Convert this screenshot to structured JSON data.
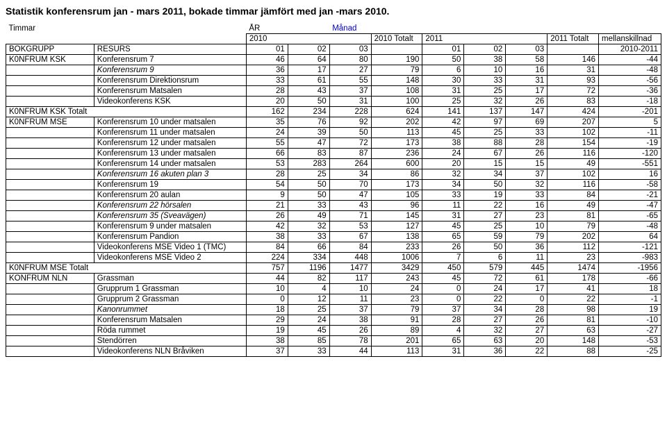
{
  "title": "Statistik konferensrum jan - mars 2011, bokade timmar jämfört med jan -mars 2010.",
  "headers": {
    "timmar": "Timmar",
    "ar": "ÅR",
    "manad": "Månad",
    "y2010": "2010",
    "t2010": "2010 Totalt",
    "y2011": "2011",
    "t2011": "2011 Totalt",
    "diff": "mellanskillnad",
    "bokgrupp": "BOKGRUPP",
    "resurs": "RESURS",
    "m01": "01",
    "m02": "02",
    "m03": "03",
    "span": "2010-2011"
  },
  "groups": [
    {
      "name": "K0NFRUM KSK",
      "rows": [
        {
          "label": "Konferensrum 7",
          "v": [
            46,
            64,
            80,
            190,
            50,
            38,
            58,
            146,
            -44
          ]
        },
        {
          "label": "Konferensrum 9",
          "italic": true,
          "v": [
            36,
            17,
            27,
            79,
            6,
            10,
            16,
            31,
            -48
          ]
        },
        {
          "label": "Konferensrum Direktionsrum",
          "v": [
            33,
            61,
            55,
            148,
            30,
            33,
            31,
            93,
            -56
          ]
        },
        {
          "label": "Konferensrum Matsalen",
          "v": [
            28,
            43,
            37,
            108,
            31,
            25,
            17,
            72,
            -36
          ]
        },
        {
          "label": "Videokonferens KSK",
          "v": [
            20,
            50,
            31,
            100,
            25,
            32,
            26,
            83,
            -18
          ]
        }
      ],
      "total": {
        "label": "K0NFRUM KSK Totalt",
        "v": [
          162,
          234,
          228,
          624,
          141,
          137,
          147,
          424,
          -201
        ]
      }
    },
    {
      "name": "K0NFRUM MSE",
      "rows": [
        {
          "label": "Konferensrum 10 under matsalen",
          "v": [
            35,
            76,
            92,
            202,
            42,
            97,
            69,
            207,
            5
          ]
        },
        {
          "label": "Konferensrum 11 under matsalen",
          "v": [
            24,
            39,
            50,
            113,
            45,
            25,
            33,
            102,
            -11
          ]
        },
        {
          "label": "Konferensrum 12 under matsalen",
          "v": [
            55,
            47,
            72,
            173,
            38,
            88,
            28,
            154,
            -19
          ]
        },
        {
          "label": "Konferensrum 13 under matsalen",
          "v": [
            66,
            83,
            87,
            236,
            24,
            67,
            26,
            116,
            -120
          ]
        },
        {
          "label": "Konferensrum 14 under matsalen",
          "v": [
            53,
            283,
            264,
            600,
            20,
            15,
            15,
            49,
            -551
          ]
        },
        {
          "label": "Konferensrum 16 akuten plan 3",
          "italic": true,
          "v": [
            28,
            25,
            34,
            86,
            32,
            34,
            37,
            102,
            16
          ]
        },
        {
          "label": "Konferensrum 19",
          "v": [
            54,
            50,
            70,
            173,
            34,
            50,
            32,
            116,
            -58
          ]
        },
        {
          "label": "Konferensrum 20 aulan",
          "v": [
            9,
            50,
            47,
            105,
            33,
            19,
            33,
            84,
            -21
          ]
        },
        {
          "label": "Konferensrum 22 hörsalen",
          "italic": true,
          "v": [
            21,
            33,
            43,
            96,
            11,
            22,
            16,
            49,
            -47
          ]
        },
        {
          "label": "Konferensrum 35 (Sveavägen)",
          "italic": true,
          "v": [
            26,
            49,
            71,
            145,
            31,
            27,
            23,
            81,
            -65
          ]
        },
        {
          "label": "Konferensrum 9 under matsalen",
          "v": [
            42,
            32,
            53,
            127,
            45,
            25,
            10,
            79,
            -48
          ]
        },
        {
          "label": "Konferensrum Pandion",
          "v": [
            38,
            33,
            67,
            138,
            65,
            59,
            79,
            202,
            64
          ]
        },
        {
          "label": "Videokonferens MSE Video 1 (TMC)",
          "v": [
            84,
            66,
            84,
            233,
            26,
            50,
            36,
            112,
            -121
          ]
        },
        {
          "label": "Videokonferens MSE Video 2",
          "v": [
            224,
            334,
            448,
            1006,
            7,
            6,
            11,
            23,
            -983
          ]
        }
      ],
      "total": {
        "label": "K0NFRUM MSE Totalt",
        "v": [
          757,
          1196,
          1477,
          3429,
          450,
          579,
          445,
          1474,
          -1956
        ]
      }
    },
    {
      "name": "KONFRUM NLN",
      "rows": [
        {
          "label": "Grassman",
          "v": [
            44,
            82,
            117,
            243,
            45,
            72,
            61,
            178,
            -66
          ]
        },
        {
          "label": "Grupprum 1 Grassman",
          "v": [
            10,
            4,
            10,
            24,
            0,
            24,
            17,
            41,
            18
          ]
        },
        {
          "label": "Grupprum 2 Grassman",
          "v": [
            0,
            12,
            11,
            23,
            0,
            22,
            0,
            22,
            -1
          ]
        },
        {
          "label": "Kanonrummet",
          "italic": true,
          "v": [
            18,
            25,
            37,
            79,
            37,
            34,
            28,
            98,
            19
          ]
        },
        {
          "label": "Konferensrum Matsalen",
          "v": [
            29,
            24,
            38,
            91,
            28,
            27,
            26,
            81,
            -10
          ]
        },
        {
          "label": "Röda rummet",
          "v": [
            19,
            45,
            26,
            89,
            4,
            32,
            27,
            63,
            -27
          ]
        },
        {
          "label": "Stendörren",
          "v": [
            38,
            85,
            78,
            201,
            65,
            63,
            20,
            148,
            -53
          ]
        },
        {
          "label": "Videokonferens NLN Bråviken",
          "v": [
            37,
            33,
            44,
            113,
            31,
            36,
            22,
            88,
            -25
          ]
        }
      ]
    }
  ]
}
